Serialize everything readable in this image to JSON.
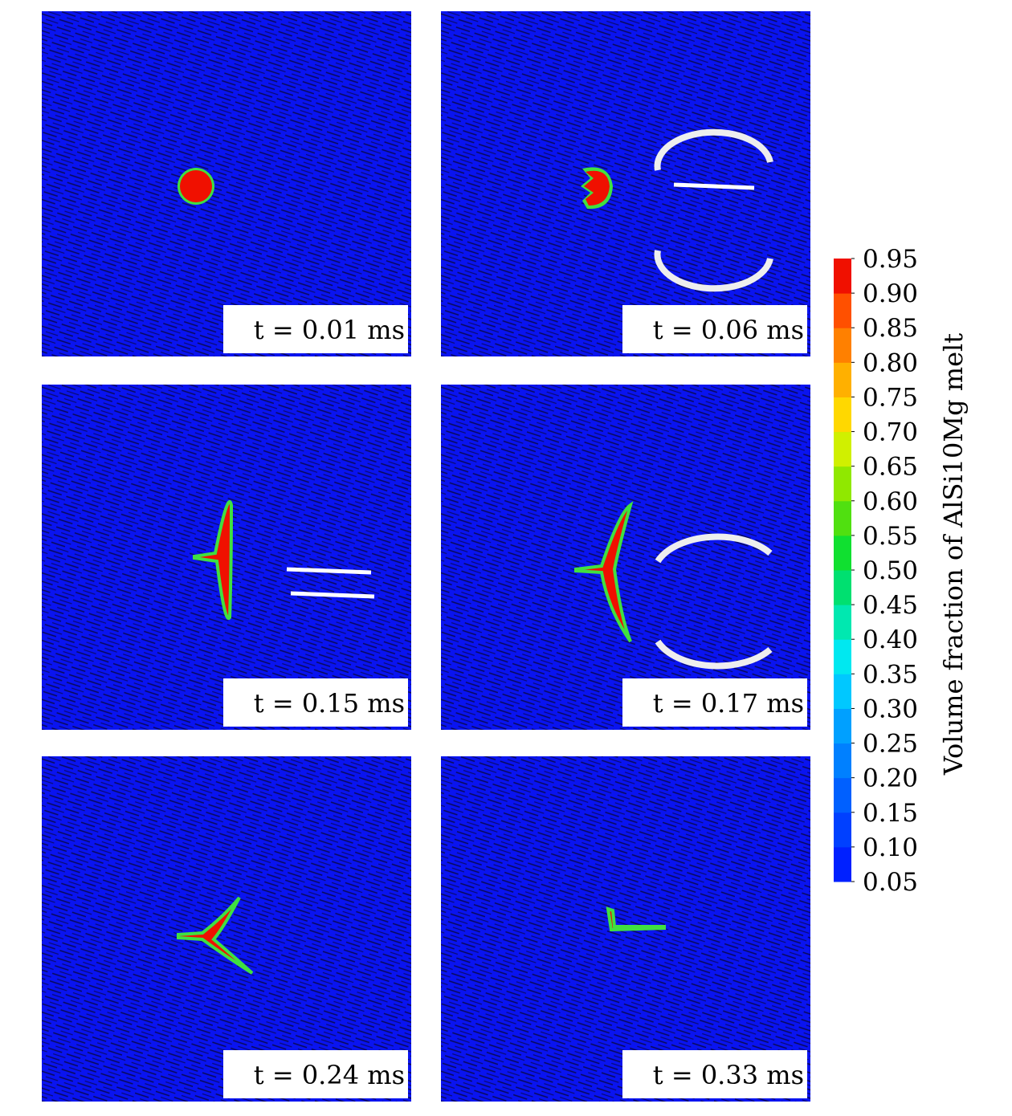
{
  "panels": [
    {
      "label": "t = 0.01 ms"
    },
    {
      "label": "t = 0.06 ms"
    },
    {
      "label": "t = 0.15 ms"
    },
    {
      "label": "t = 0.17 ms"
    },
    {
      "label": "t = 0.24 ms"
    },
    {
      "label": "t = 0.33 ms"
    }
  ],
  "colorbar": {
    "label": "Volume fraction of AlSi10Mg melt",
    "lim": [
      0.05,
      0.95
    ],
    "ticks": [
      0.05,
      {
        "value": 0.1,
        "label": "0.10"
      },
      0.15,
      {
        "value": 0.2,
        "label": "0.20"
      },
      0.25,
      {
        "value": 0.3,
        "label": "0.30"
      },
      0.35,
      {
        "value": 0.4,
        "label": "0.40"
      },
      0.45,
      {
        "value": 0.5,
        "label": "0.50"
      },
      0.55,
      {
        "value": 0.6,
        "label": "0.60"
      },
      0.65,
      {
        "value": 0.7,
        "label": "0.70"
      },
      0.75,
      {
        "value": 0.8,
        "label": "0.80"
      },
      0.85,
      {
        "value": 0.9,
        "label": "0.90"
      },
      0.95
    ],
    "colors": [
      "#0020ff",
      "#0040ff",
      "#0060ff",
      "#0080ff",
      "#00a0ff",
      "#00c8ff",
      "#00e8f0",
      "#00e8b0",
      "#00e070",
      "#10e030",
      "#50e010",
      "#90e800",
      "#d0f000",
      "#ffd800",
      "#ffb000",
      "#ff8000",
      "#ff5000",
      "#f01000"
    ]
  }
}
